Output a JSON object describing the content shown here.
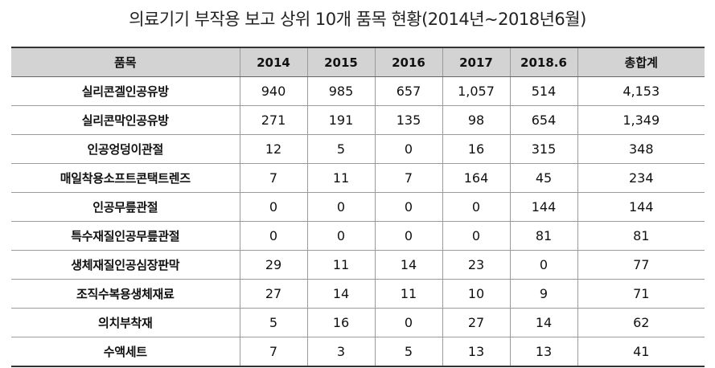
{
  "title": "의료기기 부작용 보고 상위 10개 품목 현황(2014년~2018년6월)",
  "table": {
    "headers": [
      "품목",
      "2014",
      "2015",
      "2016",
      "2017",
      "2018.6",
      "총합계"
    ],
    "rows": [
      [
        "실리콘겔인공유방",
        "940",
        "985",
        "657",
        "1,057",
        "514",
        "4,153"
      ],
      [
        "실리콘막인공유방",
        "271",
        "191",
        "135",
        "98",
        "654",
        "1,349"
      ],
      [
        "인공엉덩이관절",
        "12",
        "5",
        "0",
        "16",
        "315",
        "348"
      ],
      [
        "매일착용소프트콘택트렌즈",
        "7",
        "11",
        "7",
        "164",
        "45",
        "234"
      ],
      [
        "인공무릎관절",
        "0",
        "0",
        "0",
        "0",
        "144",
        "144"
      ],
      [
        "특수재질인공무릎관절",
        "0",
        "0",
        "0",
        "0",
        "81",
        "81"
      ],
      [
        "생체재질인공심장판막",
        "29",
        "11",
        "14",
        "23",
        "0",
        "77"
      ],
      [
        "조직수복용생체재료",
        "27",
        "14",
        "11",
        "10",
        "9",
        "71"
      ],
      [
        "의치부착재",
        "5",
        "16",
        "0",
        "27",
        "14",
        "62"
      ],
      [
        "수액세트",
        "7",
        "3",
        "5",
        "13",
        "13",
        "41"
      ]
    ]
  }
}
